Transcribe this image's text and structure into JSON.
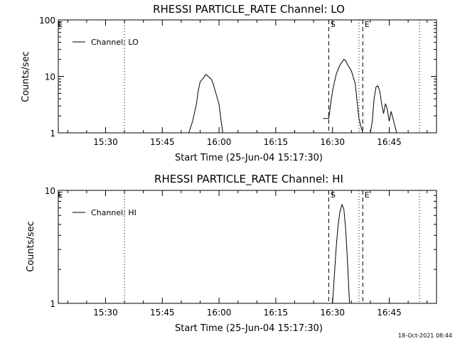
{
  "timestamp": "18-Oct-2021 08:44",
  "chart_data": [
    {
      "type": "line",
      "title": "RHESSI PARTICLE_RATE Channel: LO",
      "xlabel": "Start Time (25-Jun-04 15:17:30)",
      "ylabel": "Counts/sec",
      "y_scale": "log",
      "ylim": [
        1,
        100
      ],
      "y_ticks": [
        {
          "value": 1,
          "label": "1"
        },
        {
          "value": 10,
          "label": "10"
        },
        {
          "value": 100,
          "label": "100"
        }
      ],
      "xlim": [
        "15:17:30",
        "16:57:30"
      ],
      "x_ticks": [
        "15:30",
        "15:45",
        "16:00",
        "16:15",
        "16:30",
        "16:45"
      ],
      "legend": {
        "placement": "top-left",
        "entries": [
          "Channel: LO"
        ]
      },
      "markers": [
        {
          "time": "15:35",
          "style": "dotted",
          "label": ""
        },
        {
          "time": "16:29",
          "style": "dashed",
          "label": "S"
        },
        {
          "time": "16:37",
          "style": "dotted",
          "label": ""
        },
        {
          "time": "16:38",
          "style": "dashed",
          "label": "E"
        },
        {
          "time": "16:53",
          "style": "dotted",
          "label": ""
        }
      ],
      "edge_label": "E",
      "series": [
        {
          "name": "Channel: LO",
          "segments": [
            {
              "x": [
                "15:52:00",
                "15:53:00",
                "15:54:00",
                "15:54:30",
                "15:55:00",
                "15:56:00",
                "15:56:30",
                "15:57:00",
                "15:58:00",
                "15:58:30",
                "15:59:00",
                "16:00:00",
                "16:00:30",
                "16:01:00"
              ],
              "y": [
                1,
                1.6,
                3.2,
                5.5,
                8,
                9.6,
                10.8,
                10.2,
                8.8,
                7.2,
                5.5,
                3.2,
                1.7,
                1
              ]
            },
            {
              "x": [
                "16:27:30",
                "16:28:00",
                "16:29:00",
                "16:29:30",
                "16:30:00",
                "16:31:00",
                "16:32:00",
                "16:33:00",
                "16:33:30",
                "16:34:00",
                "16:35:00",
                "16:36:00",
                "16:36:30",
                "16:37:00"
              ],
              "y": [
                1.8,
                1.8,
                1.8,
                3.2,
                5.5,
                11,
                16,
                20,
                19,
                16,
                12.5,
                7.5,
                3.6,
                1.8
              ]
            },
            {
              "x": [
                "16:37:00",
                "16:37:30",
                "16:38:00"
              ],
              "y": [
                1.8,
                1.3,
                1
              ]
            },
            {
              "x": [
                "16:40:00",
                "16:40:30",
                "16:41:00",
                "16:41:30",
                "16:42:00",
                "16:42:30",
                "16:43:00",
                "16:43:30",
                "16:44:00",
                "16:44:30",
                "16:45:00",
                "16:45:30",
                "16:46:00",
                "16:46:30",
                "16:47:00"
              ],
              "y": [
                1,
                1.6,
                4,
                6.5,
                6.8,
                5.5,
                3.2,
                2.2,
                3.3,
                2.6,
                1.6,
                2.4,
                1.8,
                1.3,
                1
              ]
            }
          ]
        }
      ]
    },
    {
      "type": "line",
      "title": "RHESSI PARTICLE_RATE Channel: HI",
      "xlabel": "Start Time (25-Jun-04 15:17:30)",
      "ylabel": "Counts/sec",
      "y_scale": "log",
      "ylim": [
        1,
        10
      ],
      "y_ticks": [
        {
          "value": 1,
          "label": "1"
        },
        {
          "value": 10,
          "label": "10"
        }
      ],
      "xlim": [
        "15:17:30",
        "16:57:30"
      ],
      "x_ticks": [
        "15:30",
        "15:45",
        "16:00",
        "16:15",
        "16:30",
        "16:45"
      ],
      "legend": {
        "placement": "top-left",
        "entries": [
          "Channel: HI"
        ]
      },
      "markers": [
        {
          "time": "15:35",
          "style": "dotted",
          "label": ""
        },
        {
          "time": "16:29",
          "style": "dashed",
          "label": "S"
        },
        {
          "time": "16:37",
          "style": "dotted",
          "label": ""
        },
        {
          "time": "16:38",
          "style": "dashed",
          "label": "E"
        },
        {
          "time": "16:53",
          "style": "dotted",
          "label": ""
        }
      ],
      "edge_label": "E",
      "series": [
        {
          "name": "Channel: HI",
          "segments": [
            {
              "x": [
                "16:30:00",
                "16:30:30",
                "16:31:00",
                "16:31:30",
                "16:32:00",
                "16:32:30",
                "16:33:00",
                "16:33:30",
                "16:34:00",
                "16:34:30"
              ],
              "y": [
                1,
                1.8,
                3.2,
                5,
                6.5,
                7.5,
                6.8,
                4.5,
                2.2,
                1
              ]
            }
          ]
        }
      ]
    }
  ]
}
